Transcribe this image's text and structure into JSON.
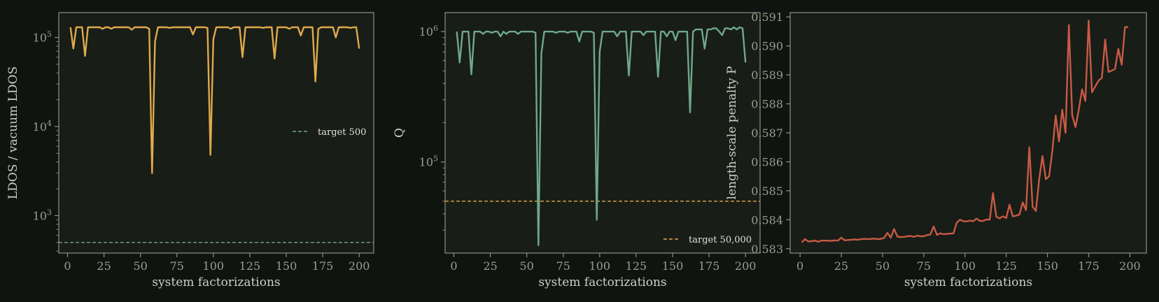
{
  "colors": {
    "figure_bg": "#0f1410",
    "panel_bg": "#181d17",
    "spine": "#8f8f80",
    "tick": "#9c9c8e",
    "label": "#d0d0c4",
    "gold": "#e0a94c",
    "green": "#6fa88a",
    "red": "#c85a45"
  },
  "chart_data": [
    {
      "type": "line",
      "xlabel": "system factorizations",
      "ylabel": "LDOS / vacuum LDOS",
      "xlim": [
        -6,
        210
      ],
      "xticks": [
        0,
        25,
        50,
        75,
        100,
        125,
        150,
        175,
        200
      ],
      "ylim": [
        380,
        190000
      ],
      "yscale": "log",
      "yticks": [
        {
          "value": 1000,
          "base": "10",
          "exp": "3"
        },
        {
          "value": 10000,
          "base": "10",
          "exp": "4"
        },
        {
          "value": 100000,
          "base": "10",
          "exp": "5"
        }
      ],
      "grid": false,
      "legend_position": "center-right",
      "series": [
        {
          "color": "gold",
          "x": [
            2,
            4,
            6,
            8,
            10,
            12,
            14,
            16,
            18,
            20,
            22,
            24,
            26,
            28,
            30,
            32,
            34,
            36,
            38,
            40,
            42,
            44,
            46,
            48,
            50,
            52,
            54,
            56,
            58,
            60,
            62,
            64,
            66,
            68,
            70,
            72,
            74,
            76,
            78,
            80,
            82,
            84,
            86,
            88,
            90,
            92,
            94,
            96,
            98,
            100,
            102,
            104,
            106,
            108,
            110,
            112,
            114,
            116,
            118,
            120,
            122,
            124,
            126,
            128,
            130,
            132,
            134,
            136,
            138,
            140,
            142,
            144,
            146,
            148,
            150,
            152,
            154,
            156,
            158,
            160,
            162,
            164,
            166,
            168,
            170,
            172,
            174,
            176,
            178,
            180,
            182,
            184,
            186,
            188,
            190,
            192,
            194,
            196,
            198,
            200
          ],
          "y": [
            130000,
            75000,
            130000,
            130000,
            130000,
            62000,
            130000,
            130000,
            130000,
            130000,
            130000,
            125000,
            130000,
            130000,
            125000,
            130000,
            130000,
            130000,
            130000,
            130000,
            130000,
            122000,
            130000,
            130000,
            130000,
            130000,
            130000,
            125000,
            3000,
            90000,
            130000,
            130000,
            130000,
            130000,
            128000,
            130000,
            130000,
            130000,
            130000,
            130000,
            130000,
            130000,
            108000,
            130000,
            130000,
            130000,
            130000,
            128000,
            4800,
            95000,
            130000,
            130000,
            130000,
            130000,
            130000,
            125000,
            130000,
            130000,
            130000,
            60000,
            130000,
            130000,
            130000,
            130000,
            130000,
            130000,
            128000,
            130000,
            130000,
            130000,
            58000,
            130000,
            130000,
            130000,
            130000,
            125000,
            130000,
            130000,
            130000,
            105000,
            130000,
            130000,
            130000,
            130000,
            32000,
            125000,
            130000,
            130000,
            130000,
            130000,
            130000,
            100000,
            130000,
            130000,
            130000,
            130000,
            128000,
            130000,
            130000,
            75000
          ]
        }
      ],
      "reference_line": {
        "value": 500,
        "color": "green",
        "label": "target 500"
      }
    },
    {
      "type": "line",
      "xlabel": "system factorizations",
      "ylabel": "Q",
      "xlim": [
        -6,
        210
      ],
      "xticks": [
        0,
        25,
        50,
        75,
        100,
        125,
        150,
        175,
        200
      ],
      "ylim": [
        20000,
        1400000
      ],
      "yscale": "log",
      "yticks": [
        {
          "value": 100000,
          "base": "10",
          "exp": "5"
        },
        {
          "value": 1000000,
          "base": "10",
          "exp": "6"
        }
      ],
      "grid": false,
      "legend_position": "bottom-right",
      "series": [
        {
          "color": "green",
          "x": [
            2,
            4,
            6,
            8,
            10,
            12,
            14,
            16,
            18,
            20,
            22,
            24,
            26,
            28,
            30,
            32,
            34,
            36,
            38,
            40,
            42,
            44,
            46,
            48,
            50,
            52,
            54,
            56,
            58,
            60,
            62,
            64,
            66,
            68,
            70,
            72,
            74,
            76,
            78,
            80,
            82,
            84,
            86,
            88,
            90,
            92,
            94,
            96,
            98,
            100,
            102,
            104,
            106,
            108,
            110,
            112,
            114,
            116,
            118,
            120,
            122,
            124,
            126,
            128,
            130,
            132,
            134,
            136,
            138,
            140,
            142,
            144,
            146,
            148,
            150,
            152,
            154,
            156,
            158,
            160,
            162,
            164,
            166,
            168,
            170,
            172,
            174,
            176,
            178,
            180,
            182,
            184,
            186,
            188,
            190,
            192,
            194,
            196,
            198,
            200
          ],
          "y": [
            1000000,
            580000,
            1000000,
            1000000,
            1000000,
            470000,
            1000000,
            1000000,
            1000000,
            960000,
            1000000,
            1000000,
            980000,
            1000000,
            1000000,
            920000,
            1000000,
            960000,
            1000000,
            1000000,
            1000000,
            960000,
            1000000,
            1000000,
            1000000,
            1000000,
            1000000,
            980000,
            23000,
            680000,
            1000000,
            1000000,
            1000000,
            1000000,
            980000,
            1000000,
            1000000,
            1000000,
            980000,
            1000000,
            1000000,
            1000000,
            840000,
            1000000,
            1000000,
            1000000,
            1000000,
            980000,
            36000,
            700000,
            1000000,
            1000000,
            1000000,
            1000000,
            1000000,
            920000,
            1000000,
            1000000,
            1000000,
            460000,
            1000000,
            1000000,
            1000000,
            1000000,
            940000,
            1000000,
            1000000,
            1000000,
            1000000,
            450000,
            1000000,
            1000000,
            920000,
            1000000,
            1000000,
            860000,
            1000000,
            1000000,
            1000000,
            1000000,
            240000,
            1000000,
            1040000,
            1040000,
            1040000,
            740000,
            1040000,
            1040000,
            1060000,
            1060000,
            1000000,
            940000,
            1060000,
            1060000,
            1040000,
            1080000,
            1040000,
            1080000,
            1060000,
            580000
          ]
        }
      ],
      "reference_line": {
        "value": 50000,
        "color": "gold",
        "label": "target 50,000"
      }
    },
    {
      "type": "line",
      "xlabel": "system factorizations",
      "ylabel": "length-scale penalty P",
      "xlim": [
        -6,
        210
      ],
      "xticks": [
        0,
        25,
        50,
        75,
        100,
        125,
        150,
        175,
        200
      ],
      "ylim": [
        0.58285,
        0.59115
      ],
      "yscale": "linear",
      "yticks": [
        0.583,
        0.584,
        0.585,
        0.586,
        0.587,
        0.588,
        0.589,
        0.59,
        0.591
      ],
      "grid": false,
      "series": [
        {
          "color": "red",
          "x": [
            1,
            3,
            5,
            7,
            9,
            11,
            13,
            15,
            17,
            19,
            21,
            23,
            25,
            27,
            29,
            31,
            33,
            35,
            37,
            39,
            41,
            43,
            45,
            47,
            49,
            51,
            53,
            55,
            57,
            59,
            61,
            63,
            65,
            67,
            69,
            71,
            73,
            75,
            77,
            79,
            81,
            83,
            85,
            87,
            89,
            91,
            93,
            95,
            97,
            99,
            101,
            103,
            105,
            107,
            109,
            111,
            113,
            115,
            117,
            119,
            121,
            123,
            125,
            127,
            129,
            131,
            133,
            135,
            137,
            139,
            141,
            143,
            145,
            147,
            149,
            151,
            153,
            155,
            157,
            159,
            161,
            163,
            165,
            167,
            169,
            171,
            173,
            175,
            177,
            179,
            181,
            183,
            185,
            187,
            189,
            191,
            193,
            195,
            197,
            199
          ],
          "y": [
            0.58322,
            0.58333,
            0.58325,
            0.58326,
            0.58328,
            0.58324,
            0.58328,
            0.58328,
            0.58328,
            0.58327,
            0.58329,
            0.58328,
            0.58338,
            0.58329,
            0.5833,
            0.58331,
            0.58332,
            0.58331,
            0.58333,
            0.58334,
            0.58333,
            0.58334,
            0.58335,
            0.58333,
            0.58334,
            0.58337,
            0.58355,
            0.58338,
            0.58368,
            0.58342,
            0.5834,
            0.58341,
            0.58343,
            0.58344,
            0.58341,
            0.58345,
            0.58343,
            0.58343,
            0.58347,
            0.58349,
            0.58377,
            0.58348,
            0.58353,
            0.5835,
            0.58351,
            0.58352,
            0.58353,
            0.5839,
            0.584,
            0.58395,
            0.58394,
            0.58397,
            0.58395,
            0.58404,
            0.58396,
            0.58396,
            0.58401,
            0.584,
            0.58492,
            0.5841,
            0.58405,
            0.58412,
            0.58406,
            0.58452,
            0.58412,
            0.58414,
            0.58418,
            0.5846,
            0.58433,
            0.5865,
            0.58445,
            0.5843,
            0.5854,
            0.5862,
            0.5854,
            0.5855,
            0.5864,
            0.5876,
            0.5867,
            0.5878,
            0.587,
            0.59072,
            0.5876,
            0.5872,
            0.5878,
            0.5885,
            0.5881,
            0.59087,
            0.5884,
            0.5886,
            0.5888,
            0.5889,
            0.59022,
            0.5891,
            0.58915,
            0.5892,
            0.5899,
            0.58935,
            0.59065,
            0.59065
          ]
        }
      ]
    }
  ]
}
